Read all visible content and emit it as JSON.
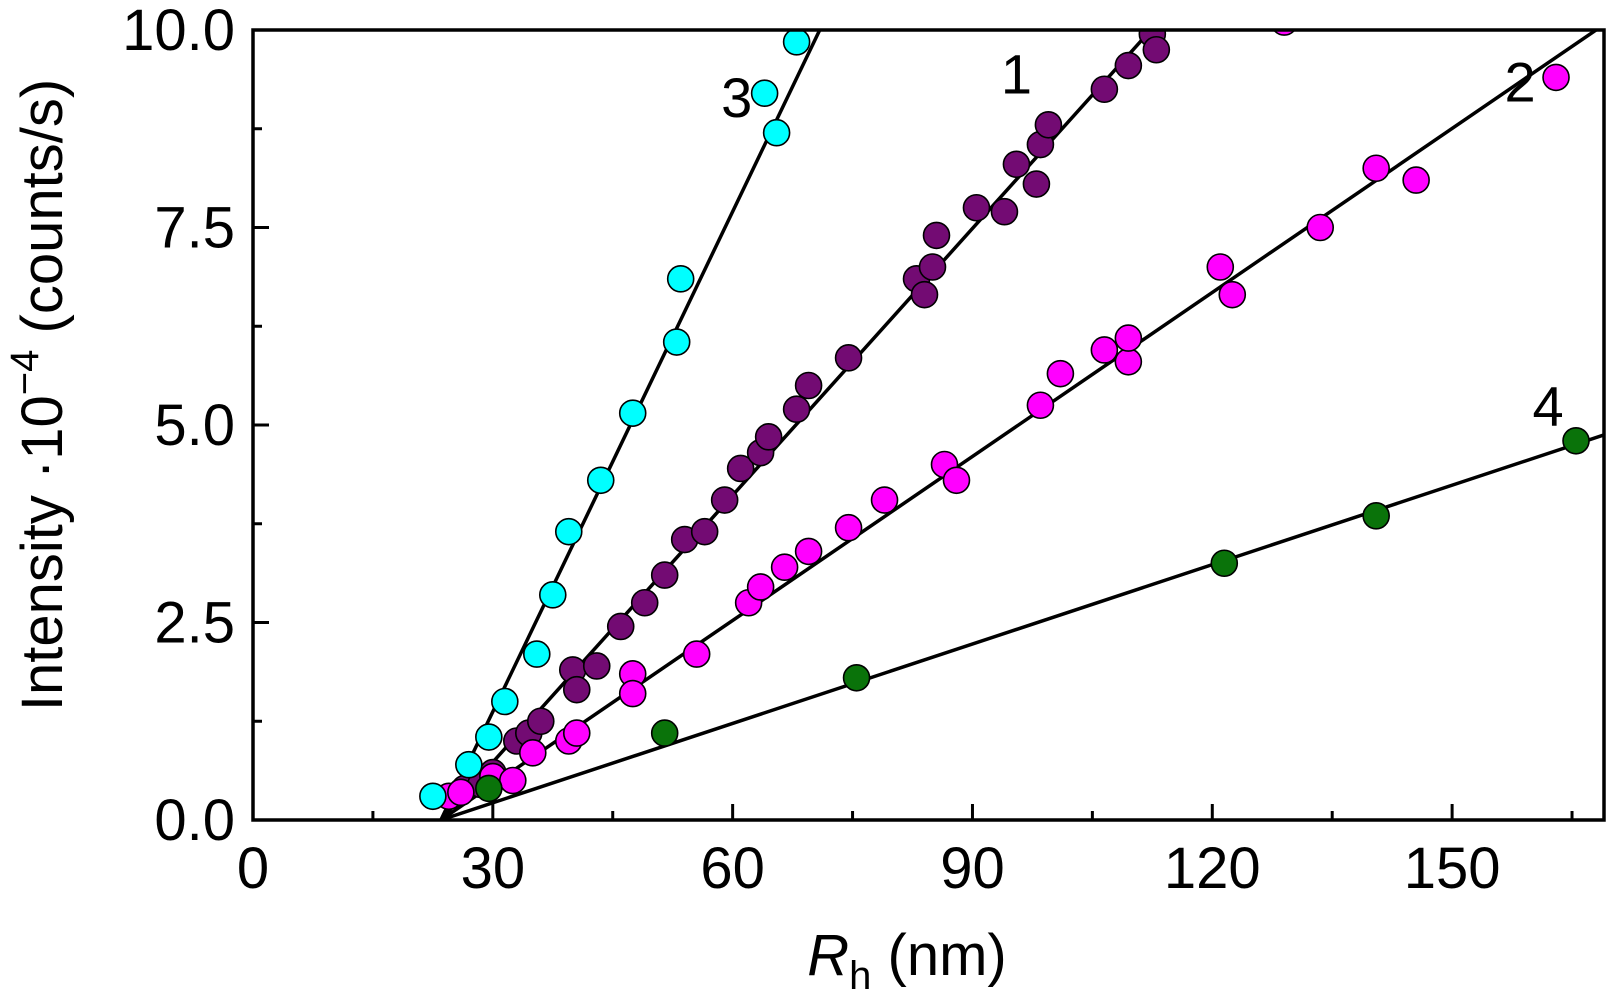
{
  "chart_data": {
    "type": "scatter",
    "title": "",
    "xlabel": {
      "symbol": "R",
      "subscript": "h",
      "unit": "(nm)"
    },
    "ylabel": {
      "prefix": "Intensity ·10",
      "exponent": "−4",
      "unit": "(counts/s)"
    },
    "xlim": [
      0,
      169
    ],
    "ylim": [
      0,
      10
    ],
    "x_ticks": [
      0,
      30,
      60,
      90,
      120,
      150
    ],
    "x_tick_labels": [
      "0",
      "30",
      "60",
      "90",
      "120",
      "150"
    ],
    "x_minor_ticks": [
      15,
      45,
      75,
      105,
      135,
      165
    ],
    "y_ticks": [
      0,
      2.5,
      5,
      7.5,
      10
    ],
    "y_tick_labels": [
      "0.0",
      "2.5",
      "5.0",
      "7.5",
      "10.0"
    ],
    "y_minor_ticks": [
      1.25,
      3.75,
      6.25,
      8.75
    ],
    "grid": false,
    "series": [
      {
        "name": "1",
        "color": "#730b73",
        "fit": {
          "x0": 23.5,
          "slope": 0.1126
        },
        "label_pos": [
          95.5,
          9.45
        ],
        "points": [
          [
            26.5,
            0.4
          ],
          [
            28.5,
            0.45
          ],
          [
            30,
            0.6
          ],
          [
            33,
            1.0
          ],
          [
            34.5,
            1.1
          ],
          [
            36,
            1.25
          ],
          [
            40,
            1.9
          ],
          [
            40.5,
            1.65
          ],
          [
            43,
            1.95
          ],
          [
            46,
            2.45
          ],
          [
            49,
            2.75
          ],
          [
            51.5,
            3.1
          ],
          [
            54,
            3.55
          ],
          [
            56.5,
            3.65
          ],
          [
            59,
            4.05
          ],
          [
            61,
            4.45
          ],
          [
            63.5,
            4.65
          ],
          [
            64.5,
            4.85
          ],
          [
            68,
            5.2
          ],
          [
            69.5,
            5.5
          ],
          [
            74.5,
            5.85
          ],
          [
            83,
            6.85
          ],
          [
            84,
            6.65
          ],
          [
            85,
            7.0
          ],
          [
            85.5,
            7.4
          ],
          [
            90.5,
            7.75
          ],
          [
            94,
            7.7
          ],
          [
            95.5,
            8.3
          ],
          [
            98,
            8.05
          ],
          [
            98.5,
            8.55
          ],
          [
            99.5,
            8.8
          ],
          [
            106.5,
            9.25
          ],
          [
            109.5,
            9.55
          ],
          [
            112.5,
            9.95
          ],
          [
            113,
            9.75
          ]
        ]
      },
      {
        "name": "2",
        "color": "#ff00ff",
        "fit": {
          "x0": 23.5,
          "slope": 0.0692
        },
        "label_pos": [
          158.5,
          9.35
        ],
        "points": [
          [
            24.5,
            0.3
          ],
          [
            26,
            0.35
          ],
          [
            30,
            0.55
          ],
          [
            32.5,
            0.5
          ],
          [
            35,
            0.85
          ],
          [
            39.5,
            1.0
          ],
          [
            40.5,
            1.1
          ],
          [
            47.5,
            1.85
          ],
          [
            47.5,
            1.6
          ],
          [
            55.5,
            2.1
          ],
          [
            62,
            2.75
          ],
          [
            63.5,
            2.95
          ],
          [
            66.5,
            3.2
          ],
          [
            69.5,
            3.4
          ],
          [
            74.5,
            3.7
          ],
          [
            79,
            4.05
          ],
          [
            86.5,
            4.5
          ],
          [
            88,
            4.3
          ],
          [
            98.5,
            5.25
          ],
          [
            101,
            5.65
          ],
          [
            106.5,
            5.95
          ],
          [
            109.5,
            5.8
          ],
          [
            109.5,
            6.1
          ],
          [
            121,
            7.0
          ],
          [
            122.5,
            6.65
          ],
          [
            133.5,
            7.5
          ],
          [
            140.5,
            8.25
          ],
          [
            145.5,
            8.1
          ],
          [
            163,
            9.4
          ],
          [
            129,
            10.1
          ]
        ]
      },
      {
        "name": "3",
        "color": "#00ffff",
        "fit": {
          "x0": 23.5,
          "slope": 0.211
        },
        "label_pos": [
          60.5,
          9.15
        ],
        "points": [
          [
            22.5,
            0.3
          ],
          [
            27,
            0.7
          ],
          [
            29.5,
            1.05
          ],
          [
            31.5,
            1.5
          ],
          [
            35.5,
            2.1
          ],
          [
            37.5,
            2.85
          ],
          [
            39.5,
            3.65
          ],
          [
            43.5,
            4.3
          ],
          [
            47.5,
            5.15
          ],
          [
            53,
            6.05
          ],
          [
            53.5,
            6.85
          ],
          [
            64,
            9.2
          ],
          [
            65.5,
            8.7
          ],
          [
            68,
            9.85
          ]
        ]
      },
      {
        "name": "4",
        "color": "#0a730a",
        "fit": {
          "x0": 23.5,
          "slope": 0.0335
        },
        "label_pos": [
          162,
          5.25
        ],
        "points": [
          [
            29.5,
            0.4
          ],
          [
            51.5,
            1.1
          ],
          [
            75.5,
            1.8
          ],
          [
            121.5,
            3.25
          ],
          [
            140.5,
            3.85
          ],
          [
            165.5,
            4.8
          ]
        ]
      }
    ]
  }
}
